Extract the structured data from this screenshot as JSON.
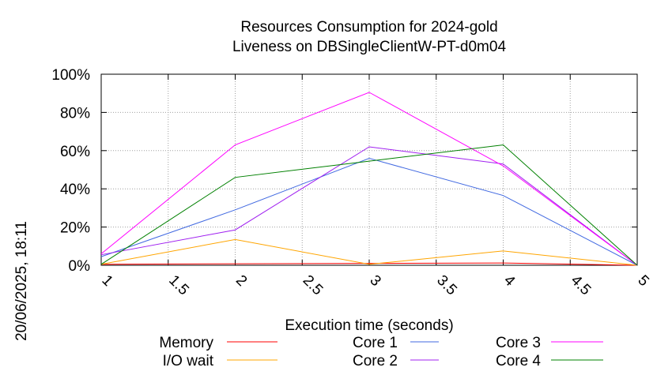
{
  "chart_data": {
    "type": "line",
    "title_line1": "Resources Consumption for 2024-gold",
    "title_line2": "Liveness on DBSingleClientW-PT-d0m04",
    "xlabel": "Execution time (seconds)",
    "ylabel": "",
    "side_label": "20/06/2025, 18:11",
    "xlim": [
      1,
      5
    ],
    "ylim": [
      0,
      100
    ],
    "x_ticks": [
      1,
      1.5,
      2,
      2.5,
      3,
      3.5,
      4,
      4.5,
      5
    ],
    "x_tick_labels": [
      "1",
      "1.5",
      "2",
      "2.5",
      "3",
      "3.5",
      "4",
      "4.5",
      "5"
    ],
    "y_ticks": [
      0,
      20,
      40,
      60,
      80,
      100
    ],
    "y_tick_labels": [
      "0%",
      "20%",
      "40%",
      "60%",
      "80%",
      "100%"
    ],
    "grid": true,
    "legend_placement": "bottom",
    "x": [
      1,
      2,
      3,
      4,
      5
    ],
    "series": [
      {
        "name": "Memory",
        "color": "#ff0000",
        "values": [
          0.5,
          0.8,
          1.0,
          1.2,
          0
        ]
      },
      {
        "name": "I/O wait",
        "color": "#ffa500",
        "values": [
          0.5,
          13.5,
          0.5,
          7.5,
          0
        ]
      },
      {
        "name": "Core 1",
        "color": "#4169e1",
        "values": [
          4.5,
          29,
          56,
          36.5,
          0
        ]
      },
      {
        "name": "Core 2",
        "color": "#a020f0",
        "values": [
          5.5,
          18.5,
          62,
          53,
          0
        ]
      },
      {
        "name": "Core 3",
        "color": "#ff00ff",
        "values": [
          6,
          63,
          90.5,
          52,
          0
        ]
      },
      {
        "name": "Core 4",
        "color": "#008000",
        "values": [
          0.5,
          46,
          54.5,
          63,
          0
        ]
      }
    ]
  }
}
